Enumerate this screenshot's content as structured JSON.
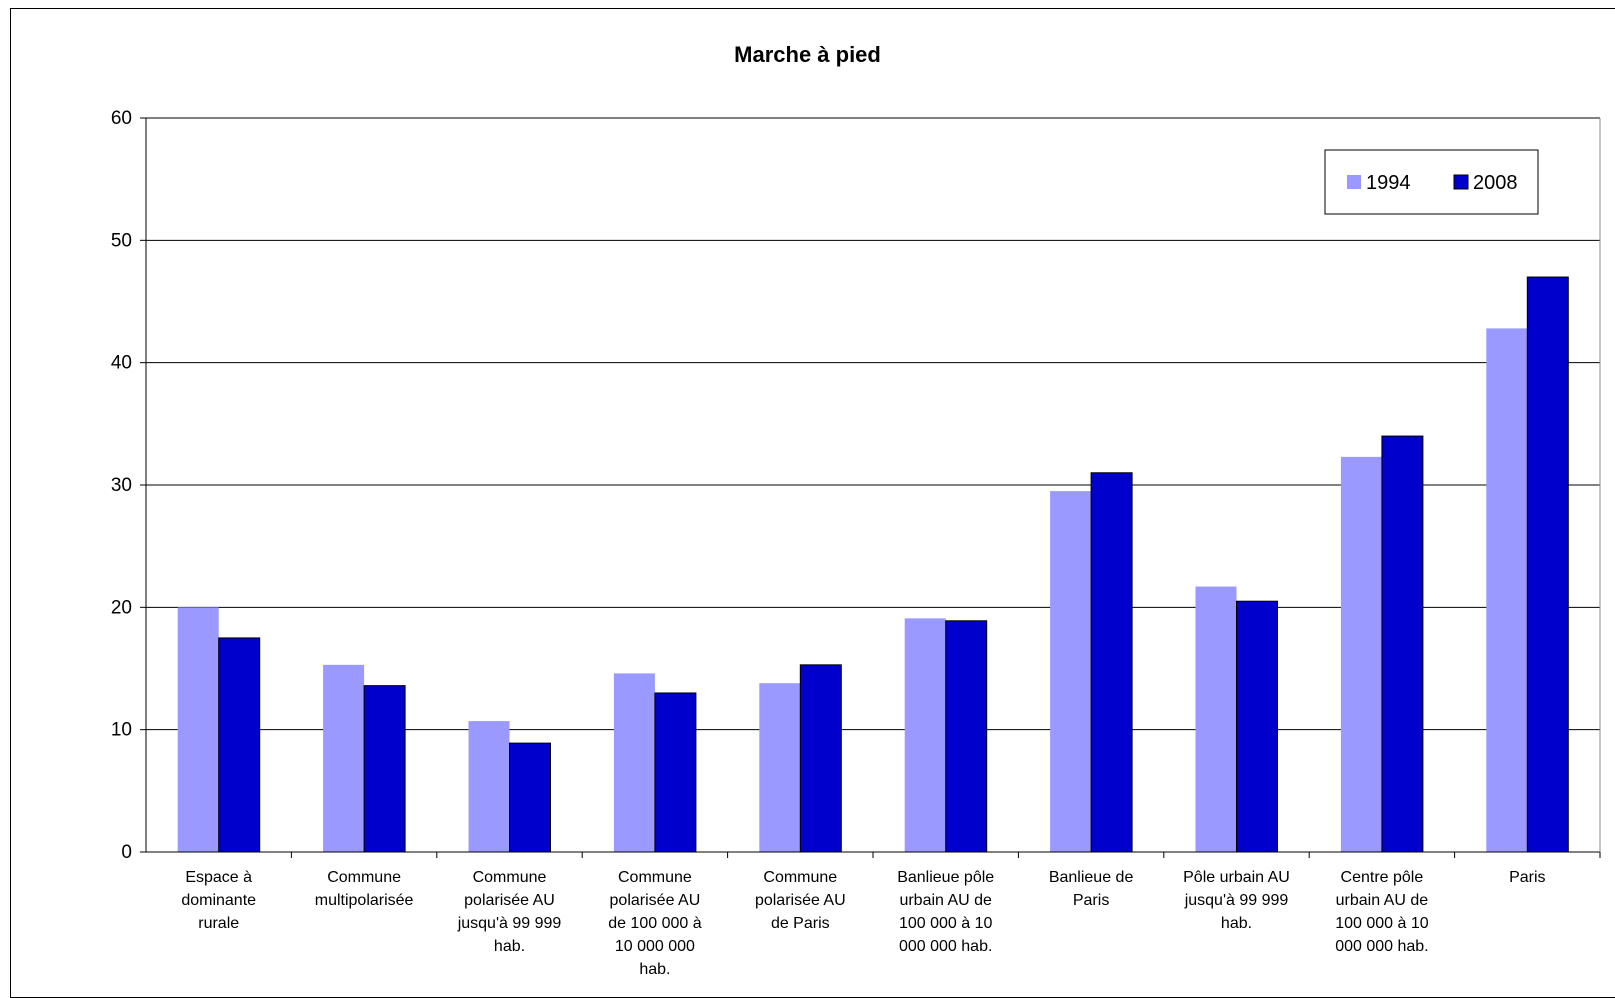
{
  "chart_data": {
    "type": "bar",
    "title": "Marche à pied",
    "categories": [
      [
        "Espace à",
        "dominante",
        "rurale"
      ],
      [
        "Commune",
        "multipolarisée"
      ],
      [
        "Commune",
        "polarisée AU",
        "jusqu'à 99 999",
        "hab."
      ],
      [
        "Commune",
        "polarisée  AU",
        "de 100 000 à",
        "10 000 000",
        "hab."
      ],
      [
        "Commune",
        "polarisée AU",
        "de Paris"
      ],
      [
        "Banlieue pôle",
        "urbain AU de",
        "100 000 à 10",
        "000 000 hab."
      ],
      [
        "Banlieue de",
        "Paris"
      ],
      [
        "Pôle urbain AU",
        "jusqu'à 99 999",
        "hab."
      ],
      [
        "Centre pôle",
        "urbain AU de",
        "100 000 à 10",
        "000 000 hab."
      ],
      [
        "Paris"
      ]
    ],
    "series": [
      {
        "name": "1994",
        "color": "#9999ff",
        "values": [
          20.0,
          15.3,
          10.7,
          14.6,
          13.8,
          19.1,
          29.5,
          21.7,
          32.3,
          42.8
        ]
      },
      {
        "name": "2008",
        "color": "#0000cc",
        "values": [
          17.5,
          13.6,
          8.9,
          13.0,
          15.3,
          18.9,
          31.0,
          20.5,
          34.0,
          47.0
        ]
      }
    ],
    "ylim": [
      0,
      60
    ],
    "yticks": [
      0,
      10,
      20,
      30,
      40,
      50,
      60
    ],
    "grid": true,
    "legend_position": "top-right"
  }
}
